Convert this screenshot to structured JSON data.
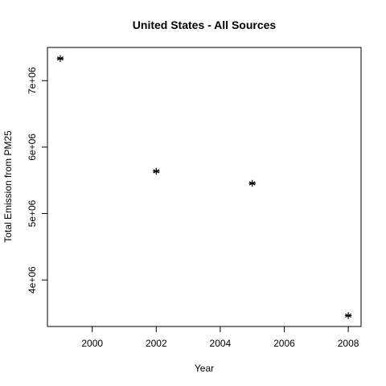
{
  "chart_data": {
    "type": "scatter",
    "title": "United States - All Sources",
    "xlabel": "Year",
    "ylabel": "Total Emission from PM25",
    "x": [
      1999,
      2002,
      2005,
      2008
    ],
    "y": [
      7332967,
      5635780,
      5454703,
      3464206
    ],
    "xlim": [
      1998.6,
      2008.4
    ],
    "ylim": [
      3300000,
      7500000
    ],
    "x_ticks": [
      2000,
      2002,
      2004,
      2006,
      2008
    ],
    "x_tick_labels": [
      "2000",
      "2002",
      "2004",
      "2006",
      "2008"
    ],
    "y_ticks": [
      4000000,
      5000000,
      6000000,
      7000000
    ],
    "y_tick_labels": [
      "4e+06",
      "5e+06",
      "6e+06",
      "7e+06"
    ],
    "marker": "asterisk",
    "grid": false,
    "legend": "none"
  }
}
